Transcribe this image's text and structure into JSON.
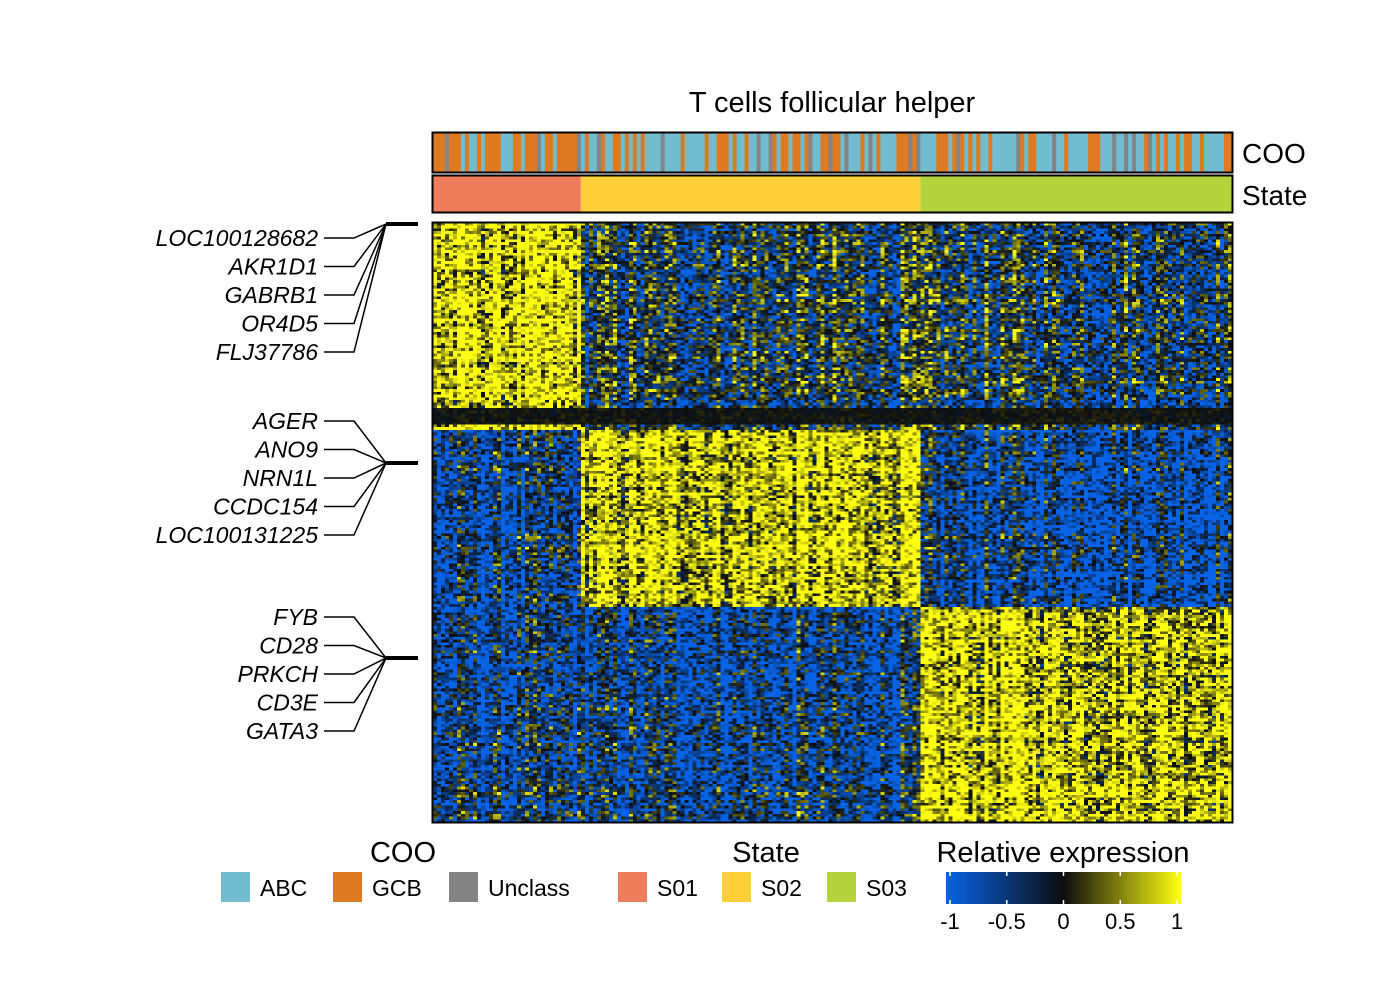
{
  "chart_data": {
    "type": "heatmap",
    "title": "T cells follicular helper",
    "column_count": 200,
    "row_count": 220,
    "annotation_tracks": [
      "COO",
      "State"
    ],
    "coo": {
      "legend_title": "COO",
      "classes": [
        {
          "label": "ABC",
          "color": "#72BCD0"
        },
        {
          "label": "GCB",
          "color": "#DD7A22"
        },
        {
          "label": "Unclass",
          "color": "#848484"
        }
      ]
    },
    "state": {
      "legend_title": "State",
      "classes": [
        {
          "label": "S01",
          "color": "#EE7D5D",
          "columns": [
            0,
            36
          ]
        },
        {
          "label": "S02",
          "color": "#FDCF38",
          "columns": [
            37,
            121
          ]
        },
        {
          "label": "S03",
          "color": "#B4D33C",
          "columns": [
            122,
            199
          ]
        }
      ]
    },
    "gene_groups": [
      {
        "genes": [
          "LOC100128682",
          "AKR1D1",
          "GABRB1",
          "OR4D5",
          "FLJ37786"
        ],
        "rows": [
          0,
          75
        ],
        "pattern": "high in S01"
      },
      {
        "genes": [
          "AGER",
          "ANO9",
          "NRN1L",
          "CCDC154",
          "LOC100131225"
        ],
        "rows": [
          76,
          140
        ],
        "pattern": "high in S02"
      },
      {
        "genes": [
          "FYB",
          "CD28",
          "PRKCH",
          "CD3E",
          "GATA3"
        ],
        "rows": [
          141,
          219
        ],
        "pattern": "high in S03"
      }
    ],
    "colorbar": {
      "title": "Relative expression",
      "min": -1,
      "max": 1,
      "ticks": [
        "-1",
        "-0.5",
        "0",
        "0.5",
        "1"
      ],
      "colors": [
        "#0863E6",
        "#0D0D0D",
        "#FFFF12"
      ]
    }
  }
}
